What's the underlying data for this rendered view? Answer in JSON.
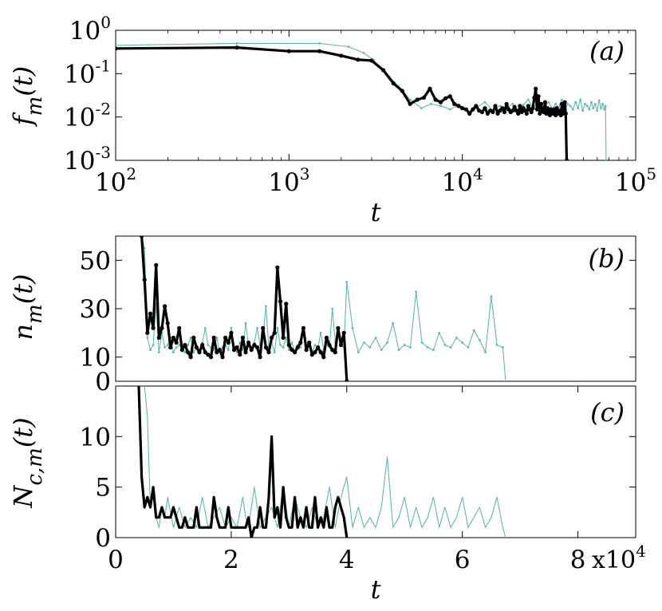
{
  "colors": {
    "series_thick": "#000000",
    "series_thin": "#5fb8b0"
  },
  "chart_data": [
    {
      "id": "a",
      "type": "line",
      "panel_label": "(a)",
      "xscale": "log",
      "yscale": "log",
      "xlim": [
        100,
        100000
      ],
      "ylim": [
        0.001,
        1
      ],
      "xlabel": "t",
      "ylabel_main": "f",
      "ylabel_sub": "m",
      "ylabel_tail": "(t)",
      "xticks": [
        {
          "value": 100,
          "base": "10",
          "exp": "2"
        },
        {
          "value": 1000,
          "base": "10",
          "exp": "3"
        },
        {
          "value": 10000,
          "base": "10",
          "exp": "4"
        },
        {
          "value": 100000,
          "base": "10",
          "exp": "5"
        }
      ],
      "yticks": [
        {
          "value": 1,
          "base": "10",
          "exp": "0"
        },
        {
          "value": 0.1,
          "base": "10",
          "exp": "-1"
        },
        {
          "value": 0.01,
          "base": "10",
          "exp": "-2"
        },
        {
          "value": 0.001,
          "base": "10",
          "exp": "-3"
        }
      ],
      "series": [
        {
          "name": "thin",
          "x": [
            100,
            500,
            1500,
            2200,
            2700,
            3100,
            3400,
            3800,
            4300,
            5000,
            5800,
            6600,
            7500,
            8500,
            9600,
            10800,
            12000,
            13500,
            15000,
            16500,
            18000,
            19500,
            21000,
            22500,
            24000,
            25500,
            27000,
            28500,
            30000,
            31500,
            33000,
            34500,
            36000,
            37500,
            39000,
            40500,
            42000,
            43500,
            45000,
            46500,
            48000,
            49500,
            51000,
            52500,
            54000,
            55500,
            57000,
            58500,
            60000,
            61500,
            63000,
            64500,
            66000,
            67000,
            67500
          ],
          "y": [
            0.45,
            0.5,
            0.5,
            0.42,
            0.3,
            0.2,
            0.13,
            0.085,
            0.05,
            0.025,
            0.016,
            0.02,
            0.018,
            0.015,
            0.019,
            0.013,
            0.016,
            0.022,
            0.014,
            0.018,
            0.016,
            0.02,
            0.014,
            0.019,
            0.025,
            0.016,
            0.02,
            0.015,
            0.018,
            0.022,
            0.015,
            0.02,
            0.017,
            0.025,
            0.014,
            0.02,
            0.018,
            0.015,
            0.022,
            0.016,
            0.025,
            0.014,
            0.02,
            0.018,
            0.015,
            0.022,
            0.016,
            0.02,
            0.014,
            0.024,
            0.016,
            0.02,
            0.015,
            0.018,
            0.001
          ]
        },
        {
          "name": "thick",
          "x": [
            100,
            500,
            1000,
            1500,
            2000,
            2500,
            3000,
            3500,
            4000,
            4500,
            5000,
            5500,
            6000,
            6500,
            7000,
            7500,
            8000,
            8500,
            9000,
            9500,
            10000,
            10500,
            11000,
            11500,
            12000,
            12500,
            13000,
            13500,
            14000,
            14500,
            15000,
            15500,
            16000,
            16500,
            17000,
            17500,
            18000,
            18500,
            19000,
            19500,
            20000,
            20500,
            21000,
            21500,
            22000,
            22500,
            23000,
            23500,
            24000,
            24500,
            25000,
            25500,
            26000,
            26500,
            27000,
            27500,
            28000,
            28500,
            29000,
            29500,
            30000,
            30500,
            31000,
            31500,
            32000,
            32500,
            33000,
            33500,
            34000,
            34500,
            35000,
            35500,
            36000,
            36500,
            37000,
            37500,
            38000,
            38500,
            39000,
            39500,
            40000
          ],
          "y": [
            0.38,
            0.4,
            0.33,
            0.33,
            0.26,
            0.21,
            0.2,
            0.12,
            0.06,
            0.04,
            0.02,
            0.025,
            0.028,
            0.045,
            0.025,
            0.022,
            0.027,
            0.03,
            0.02,
            0.018,
            0.016,
            0.015,
            0.012,
            0.015,
            0.018,
            0.014,
            0.013,
            0.016,
            0.012,
            0.014,
            0.013,
            0.018,
            0.012,
            0.014,
            0.016,
            0.013,
            0.02,
            0.015,
            0.013,
            0.014,
            0.017,
            0.014,
            0.012,
            0.018,
            0.013,
            0.016,
            0.014,
            0.012,
            0.018,
            0.015,
            0.013,
            0.016,
            0.028,
            0.045,
            0.015,
            0.03,
            0.012,
            0.02,
            0.014,
            0.013,
            0.022,
            0.012,
            0.016,
            0.012,
            0.011,
            0.015,
            0.013,
            0.012,
            0.015,
            0.011,
            0.016,
            0.012,
            0.014,
            0.012,
            0.011,
            0.02,
            0.012,
            0.013,
            0.022,
            0.012,
            0.001
          ]
        }
      ]
    },
    {
      "id": "b",
      "type": "line",
      "panel_label": "(b)",
      "xscale": "linear",
      "yscale": "linear",
      "xlim": [
        0,
        90000
      ],
      "ylim": [
        0,
        60
      ],
      "ylabel_main": "n",
      "ylabel_sub": "m",
      "ylabel_tail": "(t)",
      "yticks": [
        {
          "value": 0,
          "label": "0"
        },
        {
          "value": 10,
          "label": "10"
        },
        {
          "value": 30,
          "label": "30"
        },
        {
          "value": 50,
          "label": "50"
        }
      ],
      "series": [
        {
          "name": "thin",
          "x": [
            4500,
            5000,
            5500,
            6000,
            6500,
            7000,
            7500,
            8000,
            8500,
            9000,
            9500,
            10000,
            10500,
            11000,
            11500,
            12000,
            12500,
            13000,
            13500,
            14000,
            14500,
            15000,
            15500,
            16000,
            16500,
            17000,
            17500,
            18000,
            18500,
            19000,
            19500,
            20000,
            20500,
            21000,
            21500,
            22000,
            22500,
            23000,
            23500,
            24000,
            24500,
            25000,
            25500,
            26000,
            26500,
            27000,
            27500,
            28000,
            28500,
            29000,
            29500,
            30000,
            30500,
            31000,
            31500,
            32000,
            32500,
            33000,
            33500,
            34000,
            34500,
            35000,
            35500,
            36000,
            36500,
            37000,
            37500,
            38000,
            38500,
            39000,
            39500,
            40000,
            41000,
            42000,
            43000,
            44000,
            45000,
            46000,
            47000,
            48000,
            49000,
            50000,
            51000,
            52000,
            53000,
            54000,
            55000,
            56000,
            57000,
            58000,
            59000,
            60000,
            61000,
            62000,
            63000,
            64000,
            65000,
            66000,
            67000,
            67500
          ],
          "y": [
            60,
            55,
            18,
            13,
            15,
            32,
            12,
            20,
            14,
            15,
            18,
            12,
            14,
            15,
            13,
            12,
            15,
            18,
            12,
            14,
            13,
            16,
            22,
            15,
            14,
            13,
            18,
            12,
            14,
            15,
            13,
            22,
            14,
            12,
            16,
            13,
            24,
            15,
            14,
            16,
            22,
            15,
            18,
            31,
            14,
            16,
            12,
            22,
            15,
            14,
            18,
            13,
            16,
            12,
            15,
            14,
            22,
            13,
            16,
            12,
            15,
            14,
            20,
            13,
            16,
            14,
            30,
            16,
            22,
            15,
            14,
            41,
            22,
            12,
            16,
            14,
            18,
            13,
            16,
            24,
            13,
            15,
            14,
            37,
            16,
            14,
            13,
            20,
            15,
            14,
            18,
            16,
            14,
            21,
            17,
            12,
            35,
            15,
            14,
            0
          ],
          "marker": "dot"
        },
        {
          "name": "thick",
          "x": [
            4500,
            5000,
            5500,
            6000,
            6500,
            7000,
            7500,
            8000,
            8500,
            9000,
            9500,
            10000,
            10500,
            11000,
            11500,
            12000,
            12500,
            13000,
            13500,
            14000,
            14500,
            15000,
            15500,
            16000,
            16500,
            17000,
            17500,
            18000,
            18500,
            19000,
            19500,
            20000,
            20500,
            21000,
            21500,
            22000,
            22500,
            23000,
            23500,
            24000,
            24500,
            25000,
            25500,
            26000,
            26500,
            27000,
            27500,
            28000,
            28500,
            29000,
            29500,
            30000,
            30500,
            31000,
            31500,
            32000,
            32500,
            33000,
            33500,
            34000,
            34500,
            35000,
            35500,
            36000,
            36500,
            37000,
            37500,
            38000,
            38500,
            39000,
            39500,
            40000
          ],
          "y": [
            60,
            42,
            20,
            28,
            22,
            48,
            18,
            22,
            31,
            24,
            14,
            18,
            16,
            22,
            13,
            15,
            12,
            10,
            18,
            14,
            12,
            15,
            12,
            11,
            10,
            18,
            12,
            13,
            10,
            18,
            16,
            20,
            13,
            14,
            11,
            18,
            12,
            16,
            13,
            15,
            14,
            10,
            22,
            14,
            12,
            18,
            20,
            47,
            33,
            18,
            32,
            15,
            13,
            12,
            14,
            16,
            22,
            13,
            16,
            11,
            12,
            14,
            12,
            10,
            18,
            15,
            13,
            12,
            22,
            15,
            20,
            0
          ]
        }
      ]
    },
    {
      "id": "c",
      "type": "line",
      "panel_label": "(c)",
      "xscale": "linear",
      "yscale": "linear",
      "xlim": [
        0,
        90000
      ],
      "ylim": [
        0,
        15
      ],
      "xlabel": "t",
      "ylabel_main": "N",
      "ylabel_sub": "c,m",
      "ylabel_tail": "(t)",
      "xticks": [
        {
          "value": 0,
          "label": "0"
        },
        {
          "value": 20000,
          "label": "2"
        },
        {
          "value": 40000,
          "label": "4"
        },
        {
          "value": 60000,
          "label": "6"
        },
        {
          "value": 80000,
          "label": "8"
        }
      ],
      "xmultiplier_base": "x10",
      "xmultiplier_exp": "4",
      "yticks": [
        {
          "value": 0,
          "label": "0"
        },
        {
          "value": 5,
          "label": "5"
        },
        {
          "value": 10,
          "label": "10"
        }
      ],
      "series": [
        {
          "name": "thin",
          "x": [
            5000,
            5500,
            6000,
            6500,
            7000,
            7500,
            8000,
            8500,
            9000,
            10000,
            11000,
            12000,
            13000,
            14000,
            15000,
            16000,
            17000,
            18000,
            19000,
            20000,
            21000,
            22000,
            22500,
            23000,
            24000,
            25000,
            26000,
            27000,
            28000,
            29000,
            30000,
            31000,
            32000,
            33000,
            34000,
            35000,
            36000,
            37000,
            38000,
            39000,
            40000,
            41000,
            42000,
            43000,
            44000,
            45000,
            46000,
            47000,
            48000,
            49000,
            50000,
            51000,
            52000,
            53000,
            54000,
            55000,
            56000,
            57000,
            58000,
            59000,
            60000,
            61000,
            62000,
            63000,
            64000,
            65000,
            66000,
            67000,
            67500
          ],
          "y": [
            15,
            12,
            3,
            4,
            2,
            1,
            3,
            2,
            4,
            1,
            3,
            1,
            2,
            1,
            4,
            1,
            2,
            3,
            1,
            2,
            1,
            4,
            2,
            1,
            5,
            1,
            2,
            3,
            1,
            5,
            1,
            4,
            2,
            1,
            3,
            1,
            2,
            5,
            1,
            4,
            6,
            1,
            3,
            1,
            2,
            1,
            3,
            8,
            1,
            2,
            4,
            1,
            3,
            1,
            2,
            4,
            1,
            3,
            1,
            2,
            4,
            1,
            2,
            3,
            1,
            2,
            4,
            1,
            0
          ]
        },
        {
          "name": "thick",
          "x": [
            4000,
            4500,
            5000,
            5500,
            6000,
            6500,
            7000,
            7500,
            8000,
            8500,
            9000,
            9500,
            10000,
            10500,
            11000,
            11500,
            12000,
            12500,
            13000,
            13500,
            14000,
            14500,
            15000,
            15500,
            16000,
            16500,
            17000,
            17500,
            18000,
            18500,
            19000,
            19500,
            20000,
            20500,
            21000,
            21500,
            22000,
            22500,
            23000,
            23500,
            24000,
            24500,
            25000,
            25500,
            26000,
            26500,
            27000,
            27500,
            28000,
            28500,
            29000,
            29500,
            30000,
            30500,
            31000,
            31500,
            32000,
            32500,
            33000,
            33500,
            34000,
            34500,
            35000,
            35500,
            36000,
            36500,
            37000,
            37500,
            38000,
            38500,
            39000,
            39500,
            40000
          ],
          "y": [
            15,
            6,
            3,
            4,
            3,
            5,
            2,
            2,
            3,
            2,
            2,
            2,
            3,
            2,
            1,
            1,
            2,
            1,
            1,
            1,
            3,
            1,
            1,
            1,
            1,
            1,
            4,
            2,
            1,
            1,
            1,
            3,
            1,
            1,
            1,
            1,
            1,
            1,
            2,
            0,
            1,
            1,
            3,
            1,
            1,
            4,
            10,
            2,
            3,
            1,
            5,
            2,
            1,
            1,
            4,
            1,
            2,
            1,
            3,
            1,
            1,
            4,
            1,
            2,
            1,
            3,
            1,
            1,
            3,
            4,
            3,
            2,
            0
          ]
        }
      ]
    }
  ]
}
